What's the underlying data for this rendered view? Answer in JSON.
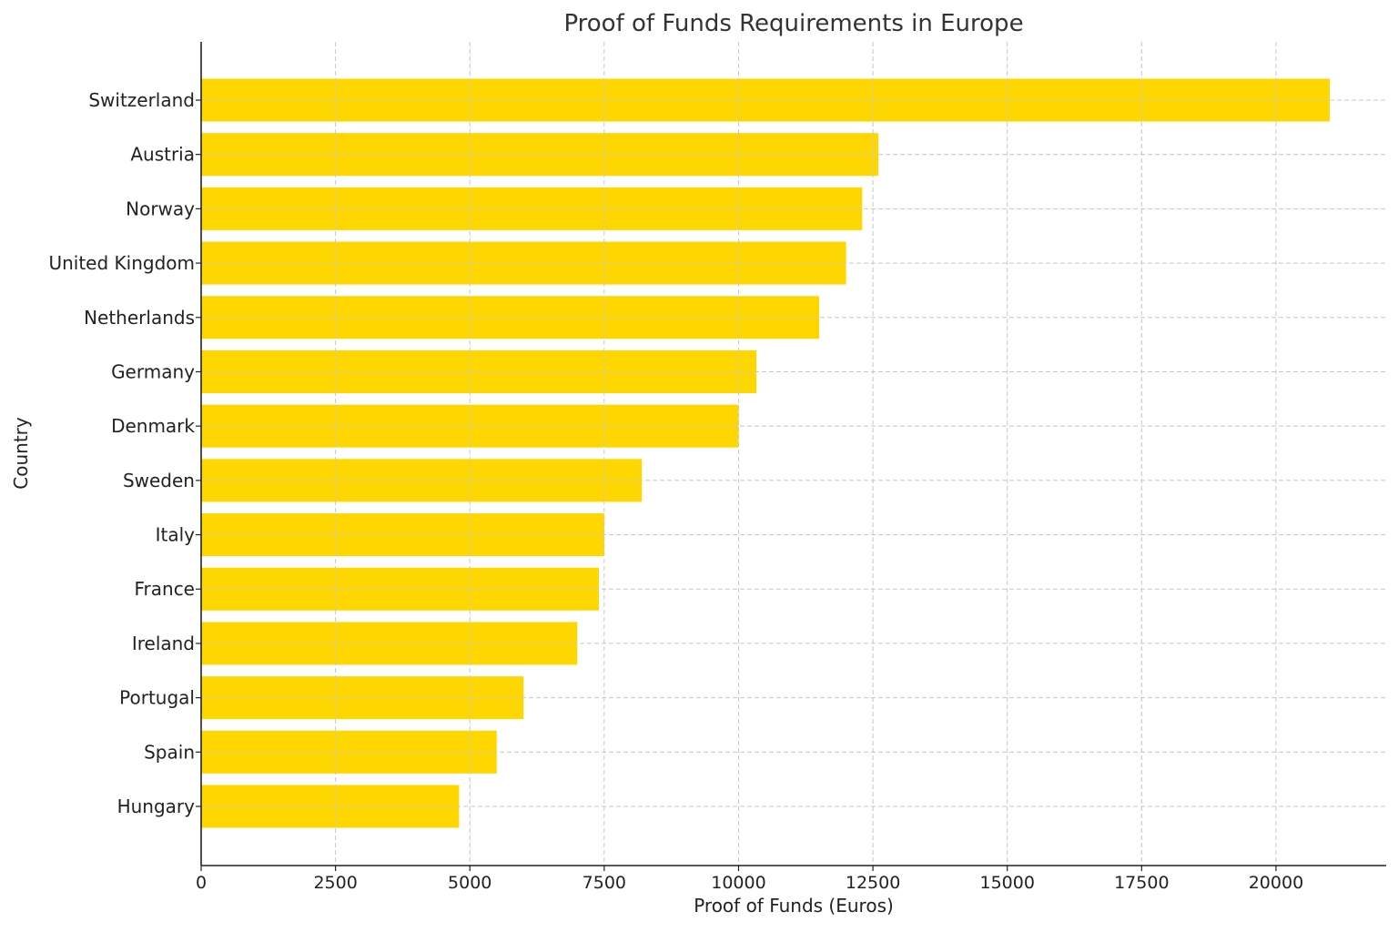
{
  "chart_data": {
    "type": "bar",
    "orientation": "horizontal",
    "title": "Proof of Funds Requirements in Europe",
    "xlabel": "Proof of Funds (Euros)",
    "ylabel": "Country",
    "categories": [
      "Switzerland",
      "Austria",
      "Norway",
      "United Kingdom",
      "Netherlands",
      "Germany",
      "Denmark",
      "Sweden",
      "Italy",
      "France",
      "Ireland",
      "Portugal",
      "Spain",
      "Hungary"
    ],
    "values": [
      21000,
      12600,
      12300,
      12000,
      11500,
      10332,
      10000,
      8200,
      7500,
      7400,
      7000,
      6000,
      5500,
      4800
    ],
    "xlim": [
      0,
      22050
    ],
    "xticks": [
      0,
      2500,
      5000,
      7500,
      10000,
      12500,
      15000,
      17500,
      20000
    ],
    "grid": true,
    "grid_style": "dashed",
    "bar_color": "#FFD700"
  }
}
